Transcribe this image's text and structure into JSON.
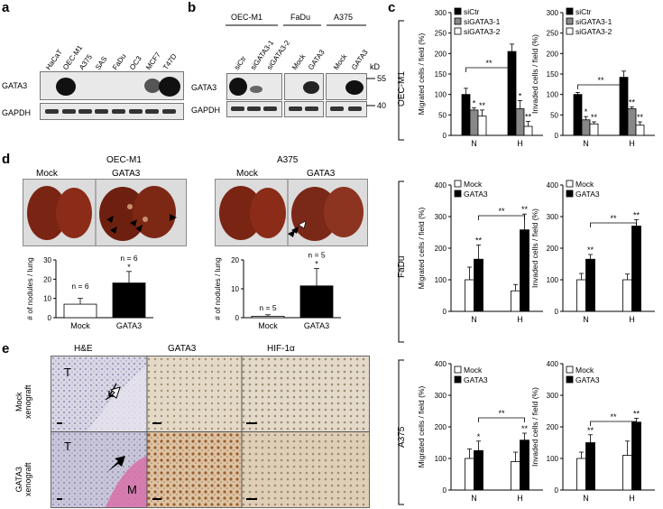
{
  "panels": {
    "a": "a",
    "b": "b",
    "c": "c",
    "d": "d",
    "e": "e"
  },
  "panel_a": {
    "lanes": [
      "HaCaT",
      "OEC-M1",
      "A375",
      "SAS",
      "FaDu",
      "OC3",
      "MCF7",
      "T47D"
    ],
    "rows": [
      "GATA3",
      "GAPDH"
    ]
  },
  "panel_b": {
    "groups": [
      "OEC-M1",
      "FaDu",
      "A375"
    ],
    "lanes": [
      "siCtr",
      "siGATA3-1",
      "siGATA3-2",
      "Mock",
      "GATA3",
      "Mock",
      "GATA3"
    ],
    "rows": [
      "GATA3",
      "GAPDH"
    ],
    "kd_unit": "kD",
    "kd_markers": [
      "55",
      "40"
    ]
  },
  "panel_c_rows": {
    "oec": "OEC-M1",
    "fadu": "FaDu",
    "a375": "A375"
  },
  "panel_d": {
    "oec": {
      "title": "OEC-M1",
      "mock": "Mock",
      "gata3": "GATA3"
    },
    "a375": {
      "title": "A375",
      "mock": "Mock",
      "gata3": "GATA3"
    }
  },
  "panel_e": {
    "cols": [
      "H&E",
      "GATA3",
      "HIF-1α"
    ],
    "rows": [
      "Mock xenograft",
      "GATA3 xenograft"
    ],
    "mock_l1": "Mock",
    "mock_l2": "xenograft",
    "gata_l1": "GATA3",
    "gata_l2": "xenograft",
    "T": "T",
    "M": "M"
  },
  "chart_data": [
    {
      "id": "c-oec-migrated",
      "type": "bar",
      "categories": [
        "N",
        "H"
      ],
      "series": [
        {
          "name": "siCtr",
          "values": [
            100,
            205
          ],
          "errors": [
            15,
            18
          ]
        },
        {
          "name": "siGATA3-1",
          "values": [
            62,
            65
          ],
          "errors": [
            5,
            20
          ]
        },
        {
          "name": "siGATA3-2",
          "values": [
            47,
            22
          ],
          "errors": [
            15,
            12
          ]
        }
      ],
      "ylabel": "Migrated cells / field (%)",
      "ylim": [
        0,
        300
      ],
      "yticks": [
        0,
        50,
        100,
        150,
        200,
        250,
        300
      ],
      "sig": {
        "within": [
          "*",
          "**",
          "*",
          "**"
        ],
        "between": "**"
      },
      "legend": "top-left"
    },
    {
      "id": "c-oec-invaded",
      "type": "bar",
      "categories": [
        "N",
        "H"
      ],
      "series": [
        {
          "name": "siCtr",
          "values": [
            100,
            142
          ],
          "errors": [
            5,
            15
          ]
        },
        {
          "name": "siGATA3-1",
          "values": [
            38,
            65
          ],
          "errors": [
            8,
            5
          ]
        },
        {
          "name": "siGATA3-2",
          "values": [
            28,
            25
          ],
          "errors": [
            5,
            8
          ]
        }
      ],
      "ylabel": "Invaded cells / field (%)",
      "ylim": [
        0,
        300
      ],
      "yticks": [
        0,
        50,
        100,
        150,
        200,
        250,
        300
      ],
      "sig": {
        "within": [
          "*",
          "**",
          "**",
          "**"
        ],
        "between": "**"
      },
      "legend": "top-left"
    },
    {
      "id": "c-fadu-migrated",
      "type": "bar",
      "categories": [
        "N",
        "H"
      ],
      "series": [
        {
          "name": "Mock",
          "values": [
            100,
            65
          ],
          "errors": [
            40,
            20
          ]
        },
        {
          "name": "GATA3",
          "values": [
            165,
            258
          ],
          "errors": [
            45,
            50
          ]
        }
      ],
      "ylabel": "Migrated cells / field (%)",
      "ylim": [
        0,
        400
      ],
      "yticks": [
        0,
        100,
        200,
        300,
        400
      ],
      "sig": {
        "within": [
          "**",
          "**"
        ],
        "between": "**"
      },
      "legend": "top-left"
    },
    {
      "id": "c-fadu-invaded",
      "type": "bar",
      "categories": [
        "N",
        "H"
      ],
      "series": [
        {
          "name": "Mock",
          "values": [
            100,
            100
          ],
          "errors": [
            20,
            18
          ]
        },
        {
          "name": "GATA3",
          "values": [
            165,
            270
          ],
          "errors": [
            15,
            20
          ]
        }
      ],
      "ylabel": "Invaded cells / field (%)",
      "ylim": [
        0,
        400
      ],
      "yticks": [
        0,
        100,
        200,
        300,
        400
      ],
      "sig": {
        "within": [
          "**",
          "**"
        ],
        "between": "**"
      },
      "legend": "top-left"
    },
    {
      "id": "c-a375-migrated",
      "type": "bar",
      "categories": [
        "N",
        "H"
      ],
      "series": [
        {
          "name": "Mock",
          "values": [
            100,
            90
          ],
          "errors": [
            30,
            30
          ]
        },
        {
          "name": "GATA3",
          "values": [
            125,
            158
          ],
          "errors": [
            30,
            22
          ]
        }
      ],
      "ylabel": "Migrated cells / field (%)",
      "ylim": [
        0,
        400
      ],
      "yticks": [
        0,
        100,
        200,
        300,
        400
      ],
      "sig": {
        "within": [
          "*",
          "**"
        ],
        "between": "**"
      },
      "legend": "top-left"
    },
    {
      "id": "c-a375-invaded",
      "type": "bar",
      "categories": [
        "N",
        "H"
      ],
      "series": [
        {
          "name": "Mock",
          "values": [
            100,
            110
          ],
          "errors": [
            20,
            45
          ]
        },
        {
          "name": "GATA3",
          "values": [
            150,
            215
          ],
          "errors": [
            25,
            12
          ]
        }
      ],
      "ylabel": "Invaded cells / field (%)",
      "ylim": [
        0,
        400
      ],
      "yticks": [
        0,
        100,
        200,
        300,
        400
      ],
      "sig": {
        "within": [
          "**",
          "**"
        ],
        "between": "**"
      },
      "legend": "top-left"
    },
    {
      "id": "d-oec-nodules",
      "type": "bar",
      "categories": [
        "Mock",
        "GATA3"
      ],
      "values": [
        7,
        18
      ],
      "errors": [
        3,
        6
      ],
      "ns": [
        "n = 6",
        "n = 6"
      ],
      "ylabel": "# of nodules / lung",
      "ylim": [
        0,
        30
      ],
      "yticks": [
        0,
        10,
        20,
        30
      ],
      "sig": [
        "",
        "*"
      ]
    },
    {
      "id": "d-a375-nodules",
      "type": "bar",
      "categories": [
        "Mock",
        "GATA3"
      ],
      "values": [
        0.5,
        11
      ],
      "errors": [
        0.5,
        6
      ],
      "ns": [
        "n = 5",
        "n = 5"
      ],
      "ylabel": "# of nodules / lung",
      "ylim": [
        0,
        20
      ],
      "yticks": [
        0,
        10,
        20
      ],
      "sig": [
        "",
        "*"
      ]
    }
  ]
}
